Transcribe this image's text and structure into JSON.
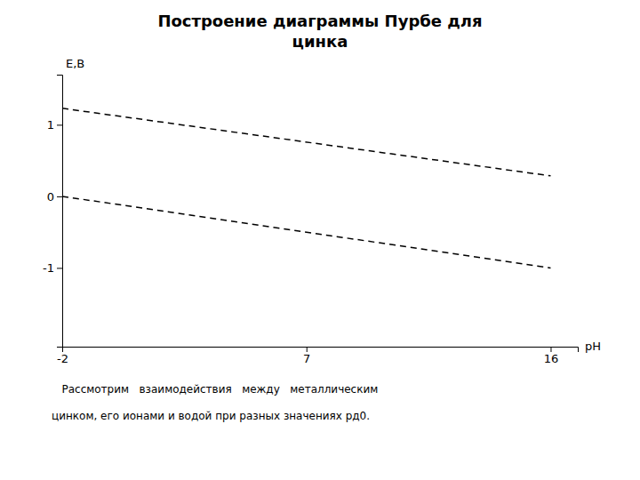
{
  "chart_data": {
    "type": "line",
    "title": "Построение диаграммы Пурбе для\nцинка",
    "xlabel": "рН",
    "ylabel": "Е,В",
    "xlim": [
      -2,
      17
    ],
    "ylim": [
      -2.1,
      1.7
    ],
    "xticks": [
      -2,
      7,
      16
    ],
    "yticks": [
      -1,
      0,
      1
    ],
    "series": [
      {
        "x": [
          -2,
          16
        ],
        "values": [
          1.23,
          0.286
        ],
        "color": "#000000",
        "line_style": "dashed"
      },
      {
        "x": [
          -2,
          16
        ],
        "values": [
          0.0,
          -1.0
        ],
        "color": "#000000",
        "line_style": "dashed"
      }
    ],
    "annotations": [
      "   Рассмотрим   взаимодействия   между   металлическим",
      "цинком, его ионами и водой при разных значениях рд0."
    ]
  }
}
